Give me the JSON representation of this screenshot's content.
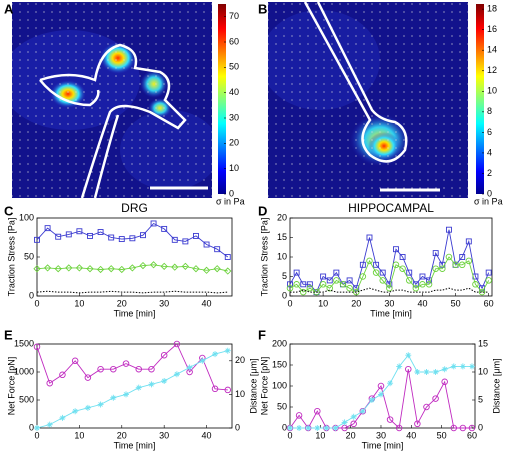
{
  "chart_data": [
    {
      "type": "image",
      "label": "A",
      "clim": [
        0,
        75
      ],
      "cticks": [
        0,
        10,
        20,
        30,
        40,
        50,
        60,
        70
      ],
      "colorbar_label": "σ in Pa"
    },
    {
      "type": "image",
      "label": "B",
      "clim": [
        0,
        18.5
      ],
      "cticks": [
        0,
        2,
        4,
        6,
        8,
        10,
        12,
        14,
        16,
        18
      ],
      "colorbar_label": "σ in Pa"
    },
    {
      "type": "line",
      "label": "C",
      "title": "DRG",
      "xlabel": "Time  [min]",
      "ylabel": "Traction Stress [Pa]",
      "x": [
        0,
        2.5,
        5,
        7.5,
        10,
        12.5,
        15,
        17.5,
        20,
        22.5,
        25,
        27.5,
        30,
        32.5,
        35,
        37.5,
        40,
        42.5,
        45
      ],
      "xlim": [
        0,
        46
      ],
      "xticks": [
        0,
        10,
        20,
        30,
        40
      ],
      "ylim": [
        0,
        100
      ],
      "yticks": [
        0,
        50,
        100
      ],
      "series": [
        {
          "color": "#3a3ad0",
          "marker": "square",
          "values": [
            72,
            87,
            76,
            79,
            83,
            77,
            82,
            75,
            73,
            74,
            78,
            93,
            86,
            72,
            70,
            77,
            66,
            60,
            50
          ]
        },
        {
          "color": "#6cd23c",
          "marker": "diamond",
          "values": [
            35,
            36,
            35,
            36,
            36,
            35,
            34,
            35,
            34,
            36,
            39,
            40,
            38,
            37,
            38,
            35,
            33,
            35,
            32
          ]
        },
        {
          "color": "#000000",
          "marker": "none",
          "dash": "dotted",
          "values": [
            5,
            6,
            5,
            5,
            4,
            5,
            5,
            6,
            5,
            5,
            4,
            5,
            5,
            6,
            5,
            5,
            5,
            4,
            5
          ]
        }
      ]
    },
    {
      "type": "line",
      "label": "D",
      "title": "HIPPOCAMPAL",
      "xlabel": "Time  [min]",
      "ylabel": "Traction Stress [Pa]",
      "x": [
        0,
        2,
        4,
        6,
        8,
        10,
        12,
        14,
        16,
        18,
        20,
        22,
        24,
        26,
        28,
        30,
        32,
        34,
        36,
        38,
        40,
        42,
        44,
        46,
        48,
        50,
        52,
        54,
        56,
        58,
        60
      ],
      "xlim": [
        0,
        61
      ],
      "xticks": [
        0,
        10,
        20,
        30,
        40,
        50,
        60
      ],
      "ylim": [
        0,
        20
      ],
      "yticks": [
        0,
        5,
        10,
        15,
        20
      ],
      "series": [
        {
          "color": "#3a3ad0",
          "marker": "square",
          "values": [
            3,
            6,
            3,
            3,
            1,
            5,
            4,
            6,
            3,
            4,
            2,
            8,
            15,
            8,
            6,
            3,
            12,
            10,
            6,
            3,
            5,
            4,
            11,
            8,
            17,
            8,
            10,
            14,
            5,
            2,
            6
          ]
        },
        {
          "color": "#6cd23c",
          "marker": "circle",
          "values": [
            2,
            3,
            1,
            2,
            1,
            3,
            2,
            4,
            3,
            2,
            1,
            5,
            9,
            6,
            4,
            2,
            8,
            7,
            4,
            2,
            3,
            3,
            7,
            7,
            10,
            8,
            8,
            9,
            3,
            1,
            4
          ]
        },
        {
          "color": "#000000",
          "marker": "none",
          "dash": "dotted",
          "values": [
            1,
            1,
            1.5,
            1,
            1,
            1,
            1.5,
            1,
            1,
            1,
            1,
            1.5,
            2,
            1.5,
            1,
            1,
            1.5,
            1.5,
            1,
            1,
            1,
            1,
            1.5,
            1.5,
            2,
            1.5,
            1.5,
            2,
            1,
            1,
            1
          ]
        }
      ]
    },
    {
      "type": "line",
      "label": "E",
      "xlabel": "Time  [min]",
      "ylabel": "Net Force [pN]",
      "y2label": "Distance [μm]",
      "x": [
        0,
        3,
        6,
        9,
        12,
        15,
        18,
        21,
        24,
        27,
        30,
        33,
        36,
        39,
        42,
        45
      ],
      "xlim": [
        0,
        46
      ],
      "xticks": [
        0,
        10,
        20,
        30,
        40
      ],
      "ylim": [
        0,
        1500
      ],
      "yticks": [
        0,
        500,
        1000,
        1500
      ],
      "y2lim": [
        0,
        25
      ],
      "y2ticks": [
        0,
        10,
        20
      ],
      "series": [
        {
          "color": "#c02ac0",
          "marker": "circle",
          "values": [
            1450,
            800,
            950,
            1200,
            900,
            1050,
            1050,
            1150,
            1050,
            1050,
            1300,
            1500,
            1000,
            1250,
            700,
            680
          ]
        },
        {
          "color": "#6fe0f0",
          "marker": "star",
          "axis": "y2",
          "values": [
            0,
            1,
            3,
            5,
            6,
            7,
            9,
            10,
            12,
            13,
            14,
            16,
            18,
            20,
            22,
            23
          ]
        }
      ]
    },
    {
      "type": "line",
      "label": "F",
      "xlabel": "Time  [min]",
      "ylabel": "Net Force [pN]",
      "y2label": "Distance [μm]",
      "x": [
        0,
        3,
        6,
        9,
        12,
        15,
        18,
        21,
        24,
        27,
        30,
        33,
        36,
        39,
        42,
        45,
        48,
        51,
        54,
        57,
        60
      ],
      "xlim": [
        0,
        61
      ],
      "xticks": [
        0,
        10,
        20,
        30,
        40,
        50,
        60
      ],
      "ylim": [
        0,
        200
      ],
      "yticks": [
        0,
        50,
        100,
        150,
        200
      ],
      "y2lim": [
        0,
        15
      ],
      "y2ticks": [
        0,
        5,
        10,
        15
      ],
      "series": [
        {
          "color": "#c02ac0",
          "marker": "circle",
          "values": [
            0,
            30,
            0,
            40,
            0,
            0,
            0,
            10,
            40,
            70,
            100,
            20,
            0,
            140,
            10,
            50,
            70,
            110,
            0,
            0,
            0
          ]
        },
        {
          "color": "#6fe0f0",
          "marker": "star",
          "axis": "y2",
          "values": [
            0,
            0,
            0,
            0,
            0,
            0,
            1,
            2,
            3,
            5,
            6,
            8,
            11,
            13,
            10,
            10,
            10,
            10.5,
            11,
            11,
            11
          ]
        }
      ]
    }
  ]
}
